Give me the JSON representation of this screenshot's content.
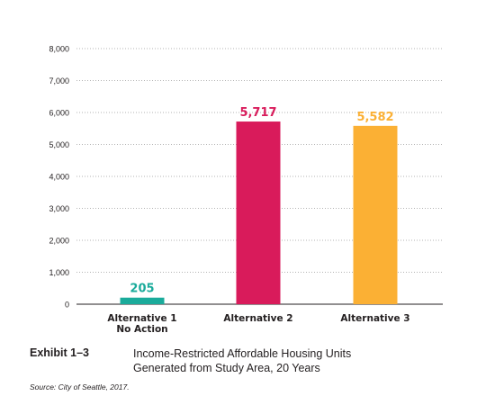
{
  "chart_data": {
    "type": "bar",
    "categories": [
      [
        "Alternative 1",
        "No Action"
      ],
      [
        "Alternative 2"
      ],
      [
        "Alternative 3"
      ]
    ],
    "values": [
      205,
      5717,
      5582
    ],
    "value_labels": [
      "205",
      "5,717",
      "5,582"
    ],
    "colors": [
      "#1aab9b",
      "#d91b5b",
      "#fbb034"
    ],
    "ylim": [
      0,
      8000
    ],
    "yticks": [
      0,
      1000,
      2000,
      3000,
      4000,
      5000,
      6000,
      7000,
      8000
    ],
    "ytick_labels": [
      "0",
      "1,000",
      "2,000",
      "3,000",
      "4,000",
      "5,000",
      "6,000",
      "7,000",
      "8,000"
    ],
    "grid": "horizontal dotted",
    "title": "",
    "xlabel": "",
    "ylabel": ""
  },
  "caption": {
    "exhibit_number": "Exhibit 1–3",
    "title_line1": "Income-Restricted Affordable Housing Units",
    "title_line2": "Generated from Study Area, 20 Years",
    "source": "Source: City of Seattle, 2017."
  }
}
